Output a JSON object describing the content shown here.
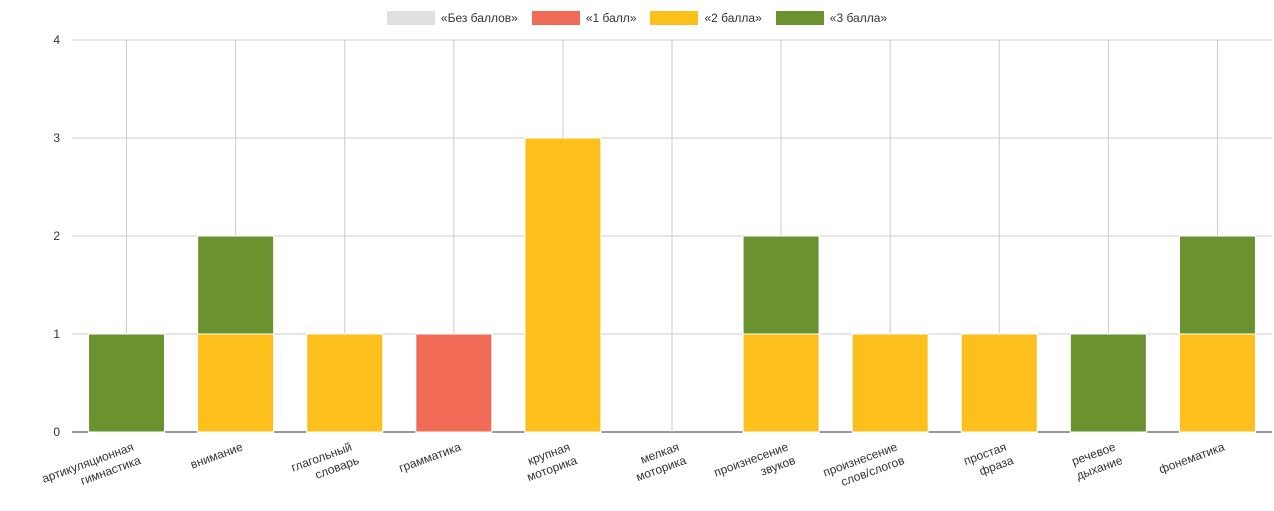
{
  "chart_data": {
    "type": "bar",
    "stacked": true,
    "categories": [
      [
        "артикуляционная",
        "гимнастика"
      ],
      [
        "внимание"
      ],
      [
        "глагольный",
        "словарь"
      ],
      [
        "грамматика"
      ],
      [
        "крупная",
        "моторика"
      ],
      [
        "мелкая",
        "моторика"
      ],
      [
        "произнесение",
        "звуков"
      ],
      [
        "произнесение",
        "слов/слогов"
      ],
      [
        "простая",
        "фраза"
      ],
      [
        "речевое",
        "дыхание"
      ],
      [
        "фонематика"
      ]
    ],
    "series": [
      {
        "name": "«Без баллов»",
        "color": "#e0e0e0",
        "values": [
          0,
          0,
          0,
          0,
          0,
          0,
          0,
          0,
          0,
          0,
          0
        ]
      },
      {
        "name": "«1 балл»",
        "color": "#f26b57",
        "values": [
          0,
          0,
          0,
          1,
          0,
          0,
          0,
          0,
          0,
          0,
          0
        ]
      },
      {
        "name": "«2 балла»",
        "color": "#fdbf1b",
        "values": [
          0,
          1,
          1,
          0,
          3,
          0,
          1,
          1,
          1,
          0,
          1
        ]
      },
      {
        "name": "«3 балла»",
        "color": "#6a9330",
        "values": [
          1,
          1,
          0,
          0,
          0,
          0,
          1,
          0,
          0,
          1,
          1
        ]
      }
    ],
    "ylim": [
      0,
      4
    ],
    "yticks": [
      0,
      1,
      2,
      3,
      4
    ],
    "grid": true,
    "legend_position": "top-center"
  }
}
